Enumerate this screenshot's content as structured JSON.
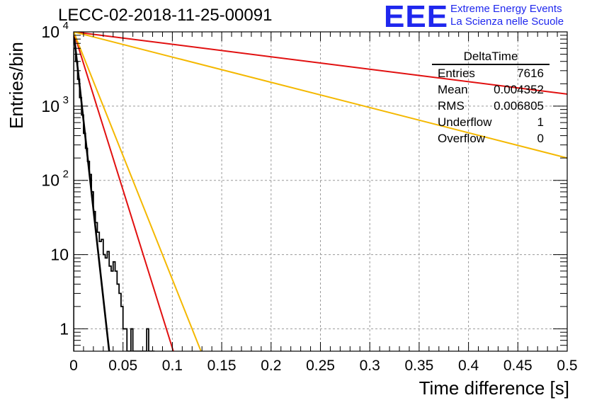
{
  "header": {
    "title": "LECC-02-2018-11-25-00091",
    "logo_text": "EEE",
    "brand_line1": "Extreme Energy Events",
    "brand_line2": "La Scienza nelle Scuole"
  },
  "stats_box": {
    "title": "DeltaTime",
    "rows": [
      {
        "label": "Entries",
        "value": "7616"
      },
      {
        "label": "Mean",
        "value": "0.004352"
      },
      {
        "label": "RMS",
        "value": "0.006805"
      },
      {
        "label": "Underflow",
        "value": "1"
      },
      {
        "label": "Overflow",
        "value": "0"
      }
    ]
  },
  "colors": {
    "histogram": "#000000",
    "fit_red": "#e11010",
    "fit_orange": "#f4b800",
    "logo": "#1f27ee",
    "grid": "#9a9a9a"
  },
  "chart_data": {
    "type": "line",
    "xlabel": "Time difference [s]",
    "ylabel": "Entries/bin",
    "xlim": [
      0,
      0.5
    ],
    "ylim": [
      0.5,
      10000
    ],
    "yscale": "log",
    "grid": true,
    "x_ticks": [
      "0",
      "0.05",
      "0.1",
      "0.15",
      "0.2",
      "0.25",
      "0.3",
      "0.35",
      "0.4",
      "0.45",
      "0.5"
    ],
    "x_tick_values": [
      0,
      0.05,
      0.1,
      0.15,
      0.2,
      0.25,
      0.3,
      0.35,
      0.4,
      0.45,
      0.5
    ],
    "y_ticks": [
      {
        "value": 1,
        "base": "1",
        "exp": ""
      },
      {
        "value": 10,
        "base": "10",
        "exp": ""
      },
      {
        "value": 100,
        "base": "10",
        "exp": "2"
      },
      {
        "value": 1000,
        "base": "10",
        "exp": "3"
      },
      {
        "value": 10000,
        "base": "10",
        "exp": "4"
      }
    ],
    "histogram": {
      "bin_width": 0.002,
      "counts": [
        6000,
        4000,
        2300,
        1300,
        760,
        430,
        270,
        180,
        120,
        70,
        38,
        27,
        20,
        15,
        16,
        10,
        9,
        11,
        7,
        6,
        8,
        6,
        4,
        3,
        2,
        1,
        1,
        0,
        0,
        1,
        0,
        0,
        0,
        0,
        0,
        0,
        0,
        1,
        0,
        0,
        0
      ]
    },
    "series": [
      {
        "x": [
          0,
          0.036
        ],
        "y": [
          10000,
          0.5
        ],
        "color": "black"
      },
      {
        "x": [
          0,
          0.101
        ],
        "y": [
          10000,
          0.5
        ],
        "color": "red"
      },
      {
        "x": [
          0,
          0.129
        ],
        "y": [
          10000,
          0.5
        ],
        "color": "orange"
      },
      {
        "x": [
          0,
          0.5
        ],
        "y": [
          10000,
          1450
        ],
        "color": "red"
      },
      {
        "x": [
          0,
          0.5
        ],
        "y": [
          10000,
          200
        ],
        "color": "orange"
      }
    ]
  }
}
